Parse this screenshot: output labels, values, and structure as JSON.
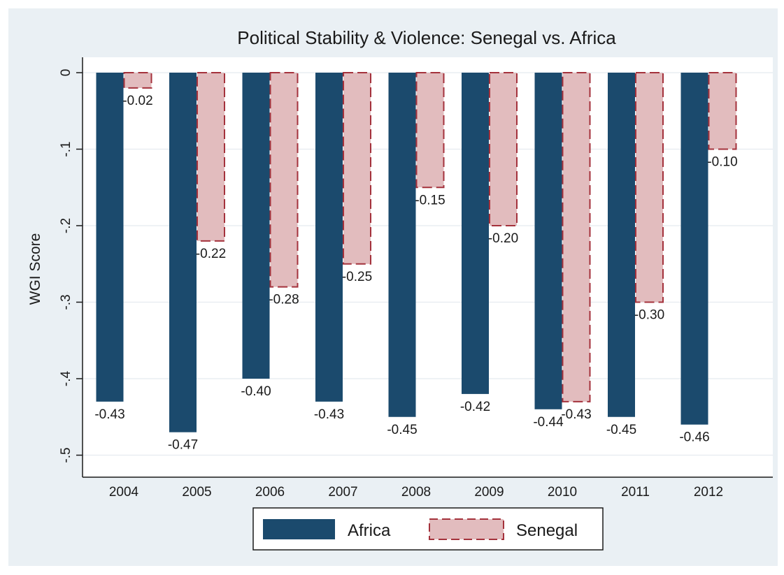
{
  "chart_data": {
    "type": "bar",
    "title": "Political Stability & Violence: Senegal vs. Africa",
    "xlabel": "",
    "ylabel": "WGI Score",
    "categories": [
      "2004",
      "2005",
      "2006",
      "2007",
      "2008",
      "2009",
      "2010",
      "2011",
      "2012"
    ],
    "series": [
      {
        "name": "Africa",
        "values": [
          -0.43,
          -0.47,
          -0.4,
          -0.43,
          -0.45,
          -0.42,
          -0.44,
          -0.45,
          -0.46
        ],
        "labels": [
          "-0.43",
          "-0.47",
          "-0.40",
          "-0.43",
          "-0.45",
          "-0.42",
          "-0.44",
          "-0.45",
          "-0.46"
        ],
        "color": "#1b4a6d"
      },
      {
        "name": "Senegal",
        "values": [
          -0.02,
          -0.22,
          -0.28,
          -0.25,
          -0.15,
          -0.2,
          -0.43,
          -0.3,
          -0.1
        ],
        "labels": [
          "-0.02",
          "-0.22",
          "-0.28",
          "-0.25",
          "-0.15",
          "-0.20",
          "-0.43",
          "-0.30",
          "-0.10"
        ],
        "color": "#e2bcbe",
        "outline": "#a4323c"
      }
    ],
    "ylim": [
      -0.52,
      0.005
    ],
    "yticks": [
      0,
      -0.1,
      -0.2,
      -0.3,
      -0.4,
      -0.5
    ],
    "ytick_labels": [
      "0",
      "-.1",
      "-.2",
      "-.3",
      "-.4",
      "-.5"
    ],
    "grid": true,
    "legend": "bottom",
    "colors": {
      "outer_background": "#eaf0f4",
      "plot_background": "#ffffff",
      "grid": "#e9eef2",
      "text": "#1a1a1a"
    }
  }
}
